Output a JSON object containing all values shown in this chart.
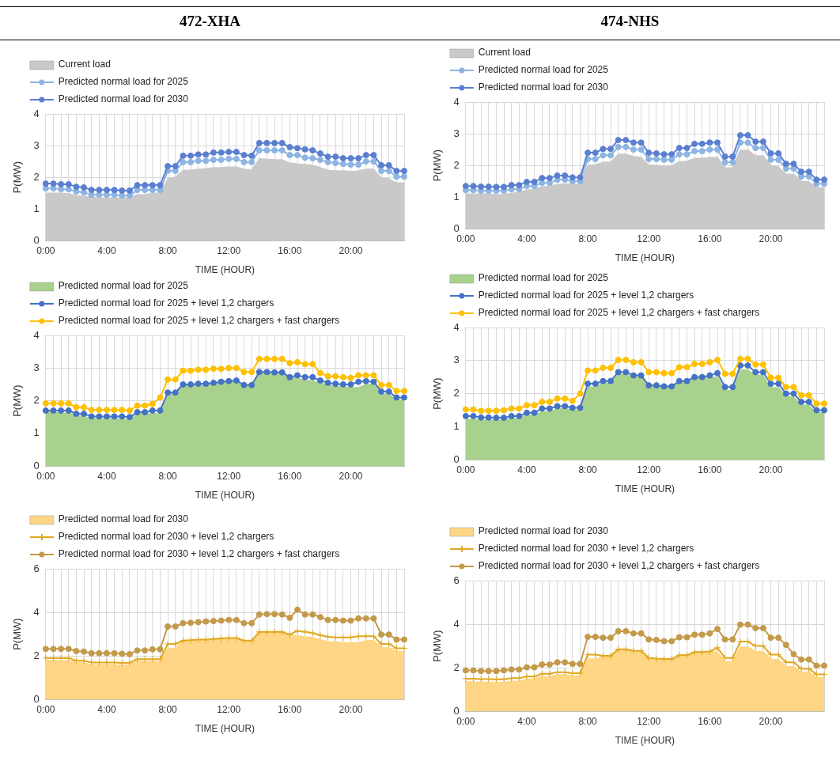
{
  "chart_data": [
    {
      "type": "line",
      "title": "472-XHA",
      "xlabel": "TIME (HOUR)",
      "ylabel": "P(MW)",
      "categories": [
        "0:00",
        null,
        null,
        null,
        null,
        null,
        null,
        null,
        "4:00",
        null,
        null,
        null,
        null,
        null,
        null,
        null,
        "8:00",
        null,
        null,
        null,
        null,
        null,
        null,
        null,
        "12:00",
        null,
        null,
        null,
        null,
        null,
        null,
        null,
        "16:00",
        null,
        null,
        null,
        null,
        null,
        null,
        null,
        "20:00",
        null,
        null,
        null,
        null,
        null,
        null,
        null
      ],
      "ylim": [
        0,
        4
      ],
      "yticks": [
        0,
        1,
        2,
        3,
        4
      ],
      "grid": true,
      "legend": "top left",
      "series": [
        {
          "name": "Current load",
          "type": "area",
          "marker": "none",
          "color": "#c9c9c9",
          "values": [
            1.5,
            1.5,
            1.5,
            1.48,
            1.42,
            1.4,
            1.38,
            1.35,
            1.35,
            1.35,
            1.35,
            1.35,
            1.45,
            1.45,
            1.5,
            1.5,
            1.95,
            2.0,
            2.22,
            2.22,
            2.25,
            2.27,
            2.3,
            2.3,
            2.32,
            2.33,
            2.25,
            2.23,
            2.58,
            2.57,
            2.55,
            2.55,
            2.45,
            2.42,
            2.4,
            2.38,
            2.3,
            2.22,
            2.2,
            2.2,
            2.18,
            2.2,
            2.25,
            2.25,
            1.98,
            1.95,
            1.82,
            1.82
          ]
        },
        {
          "name": "Predicted normal load for 2025",
          "type": "line",
          "marker": "circle",
          "color": "#8db4e2",
          "values": [
            1.65,
            1.65,
            1.62,
            1.62,
            1.55,
            1.52,
            1.45,
            1.45,
            1.45,
            1.45,
            1.42,
            1.42,
            1.6,
            1.6,
            1.6,
            1.6,
            2.2,
            2.2,
            2.48,
            2.48,
            2.52,
            2.52,
            2.55,
            2.55,
            2.58,
            2.58,
            2.48,
            2.48,
            2.85,
            2.85,
            2.85,
            2.85,
            2.7,
            2.7,
            2.62,
            2.6,
            2.55,
            2.48,
            2.45,
            2.42,
            2.4,
            2.4,
            2.5,
            2.5,
            2.2,
            2.2,
            2.02,
            2.02
          ]
        },
        {
          "name": "Predicted normal load for 2030",
          "type": "line",
          "marker": "circle",
          "color": "#5b7fd0",
          "values": [
            1.8,
            1.8,
            1.78,
            1.78,
            1.7,
            1.68,
            1.6,
            1.6,
            1.6,
            1.6,
            1.58,
            1.58,
            1.75,
            1.75,
            1.75,
            1.75,
            2.35,
            2.35,
            2.68,
            2.68,
            2.72,
            2.72,
            2.78,
            2.78,
            2.8,
            2.8,
            2.7,
            2.68,
            3.08,
            3.08,
            3.08,
            3.08,
            2.95,
            2.92,
            2.88,
            2.85,
            2.75,
            2.65,
            2.65,
            2.6,
            2.6,
            2.6,
            2.7,
            2.7,
            2.38,
            2.38,
            2.2,
            2.2
          ]
        }
      ]
    },
    {
      "type": "line",
      "title": "474-NHS",
      "xlabel": "TIME (HOUR)",
      "ylabel": "P(MW)",
      "categories": [
        "0:00",
        null,
        null,
        null,
        null,
        null,
        null,
        null,
        "4:00",
        null,
        null,
        null,
        null,
        null,
        null,
        null,
        "8:00",
        null,
        null,
        null,
        null,
        null,
        null,
        null,
        "12:00",
        null,
        null,
        null,
        null,
        null,
        null,
        null,
        "16:00",
        null,
        null,
        null,
        null,
        null,
        null,
        null,
        "20:00",
        null,
        null,
        null,
        null,
        null,
        null,
        null
      ],
      "ylim": [
        0,
        4
      ],
      "yticks": [
        0,
        1,
        2,
        3,
        4
      ],
      "grid": true,
      "legend": "top left",
      "series": [
        {
          "name": "Current load",
          "type": "area",
          "marker": "none",
          "color": "#c9c9c9",
          "values": [
            1.1,
            1.1,
            1.1,
            1.1,
            1.08,
            1.08,
            1.12,
            1.15,
            1.22,
            1.25,
            1.32,
            1.35,
            1.4,
            1.42,
            1.4,
            1.4,
            2.0,
            2.02,
            2.1,
            2.1,
            2.35,
            2.35,
            2.28,
            2.25,
            2.0,
            2.0,
            1.98,
            1.98,
            2.12,
            2.12,
            2.22,
            2.22,
            2.25,
            2.25,
            1.92,
            1.92,
            2.48,
            2.48,
            2.3,
            2.3,
            2.0,
            1.95,
            1.72,
            1.72,
            1.5,
            1.48,
            1.3,
            1.3
          ]
        },
        {
          "name": "Predicted normal load for 2025",
          "type": "line",
          "marker": "circle",
          "color": "#8db4e2",
          "values": [
            1.22,
            1.22,
            1.2,
            1.2,
            1.2,
            1.2,
            1.25,
            1.25,
            1.35,
            1.35,
            1.45,
            1.45,
            1.55,
            1.55,
            1.5,
            1.5,
            2.2,
            2.2,
            2.32,
            2.32,
            2.58,
            2.58,
            2.5,
            2.5,
            2.2,
            2.2,
            2.18,
            2.18,
            2.35,
            2.35,
            2.45,
            2.45,
            2.5,
            2.5,
            2.1,
            2.1,
            2.72,
            2.72,
            2.55,
            2.55,
            2.18,
            2.18,
            1.9,
            1.9,
            1.65,
            1.65,
            1.42,
            1.42
          ]
        },
        {
          "name": "Predicted normal load for 2030",
          "type": "line",
          "marker": "circle",
          "color": "#5b7fd0",
          "values": [
            1.35,
            1.35,
            1.33,
            1.33,
            1.32,
            1.32,
            1.38,
            1.38,
            1.48,
            1.48,
            1.6,
            1.6,
            1.68,
            1.68,
            1.62,
            1.62,
            2.4,
            2.4,
            2.52,
            2.52,
            2.8,
            2.8,
            2.72,
            2.72,
            2.4,
            2.38,
            2.35,
            2.35,
            2.55,
            2.55,
            2.68,
            2.68,
            2.72,
            2.72,
            2.28,
            2.28,
            2.95,
            2.95,
            2.75,
            2.75,
            2.38,
            2.38,
            2.05,
            2.05,
            1.8,
            1.8,
            1.55,
            1.55
          ]
        }
      ]
    },
    {
      "type": "line",
      "xlabel": "TIME (HOUR)",
      "ylabel": "P(MW)",
      "categories": [
        "0:00",
        null,
        null,
        null,
        null,
        null,
        null,
        null,
        "4:00",
        null,
        null,
        null,
        null,
        null,
        null,
        null,
        "8:00",
        null,
        null,
        null,
        null,
        null,
        null,
        null,
        "12:00",
        null,
        null,
        null,
        null,
        null,
        null,
        null,
        "16:00",
        null,
        null,
        null,
        null,
        null,
        null,
        null,
        "20:00",
        null,
        null,
        null,
        null,
        null,
        null,
        null
      ],
      "ylim": [
        0,
        4
      ],
      "yticks": [
        0,
        1,
        2,
        3,
        4
      ],
      "grid": true,
      "legend": "top left",
      "series": [
        {
          "name": "Predicted normal load for 2025",
          "type": "area",
          "marker": "none",
          "color": "#a9d18e",
          "values": [
            1.65,
            1.65,
            1.62,
            1.62,
            1.55,
            1.52,
            1.45,
            1.45,
            1.45,
            1.45,
            1.42,
            1.42,
            1.6,
            1.6,
            1.6,
            1.6,
            2.2,
            2.2,
            2.48,
            2.48,
            2.52,
            2.52,
            2.55,
            2.55,
            2.58,
            2.58,
            2.48,
            2.48,
            2.85,
            2.85,
            2.85,
            2.85,
            2.7,
            2.7,
            2.62,
            2.6,
            2.55,
            2.48,
            2.45,
            2.42,
            2.4,
            2.4,
            2.5,
            2.5,
            2.2,
            2.2,
            2.02,
            2.02
          ]
        },
        {
          "name": "Predicted normal load for 2025 + level 1,2 chargers",
          "type": "line",
          "marker": "circle",
          "color": "#4472c4",
          "values": [
            1.7,
            1.7,
            1.7,
            1.7,
            1.6,
            1.6,
            1.52,
            1.52,
            1.52,
            1.52,
            1.52,
            1.5,
            1.65,
            1.65,
            1.7,
            1.7,
            2.25,
            2.25,
            2.5,
            2.5,
            2.52,
            2.52,
            2.55,
            2.58,
            2.6,
            2.62,
            2.48,
            2.48,
            2.88,
            2.88,
            2.87,
            2.87,
            2.72,
            2.78,
            2.72,
            2.72,
            2.62,
            2.55,
            2.52,
            2.5,
            2.5,
            2.58,
            2.6,
            2.58,
            2.28,
            2.28,
            2.1,
            2.1
          ]
        },
        {
          "name": "Predicted normal load for 2025 + level 1,2 chargers + fast chargers",
          "type": "line",
          "marker": "circle",
          "color": "#ffc000",
          "values": [
            1.92,
            1.92,
            1.92,
            1.92,
            1.8,
            1.8,
            1.72,
            1.72,
            1.72,
            1.72,
            1.72,
            1.7,
            1.85,
            1.85,
            1.9,
            2.1,
            2.65,
            2.65,
            2.92,
            2.92,
            2.95,
            2.95,
            2.98,
            2.98,
            3.0,
            3.0,
            2.88,
            2.88,
            3.28,
            3.28,
            3.28,
            3.28,
            3.15,
            3.18,
            3.12,
            3.12,
            2.85,
            2.75,
            2.75,
            2.72,
            2.7,
            2.78,
            2.78,
            2.78,
            2.48,
            2.48,
            2.3,
            2.3
          ]
        }
      ]
    },
    {
      "type": "line",
      "xlabel": "TIME (HOUR)",
      "ylabel": "P(MW)",
      "categories": [
        "0:00",
        null,
        null,
        null,
        null,
        null,
        null,
        null,
        "4:00",
        null,
        null,
        null,
        null,
        null,
        null,
        null,
        "8:00",
        null,
        null,
        null,
        null,
        null,
        null,
        null,
        "12:00",
        null,
        null,
        null,
        null,
        null,
        null,
        null,
        "16:00",
        null,
        null,
        null,
        null,
        null,
        null,
        null,
        "20:00",
        null,
        null,
        null,
        null,
        null,
        null,
        null
      ],
      "ylim": [
        0,
        4
      ],
      "yticks": [
        0,
        1,
        2,
        3,
        4
      ],
      "grid": true,
      "legend": "top left",
      "series": [
        {
          "name": "Predicted normal load for 2025",
          "type": "area",
          "marker": "none",
          "color": "#a9d18e",
          "values": [
            1.22,
            1.22,
            1.2,
            1.2,
            1.2,
            1.2,
            1.25,
            1.25,
            1.35,
            1.35,
            1.45,
            1.45,
            1.55,
            1.55,
            1.5,
            1.5,
            2.2,
            2.2,
            2.32,
            2.32,
            2.58,
            2.58,
            2.5,
            2.5,
            2.2,
            2.2,
            2.18,
            2.18,
            2.35,
            2.35,
            2.45,
            2.45,
            2.5,
            2.5,
            2.1,
            2.1,
            2.72,
            2.72,
            2.55,
            2.55,
            2.18,
            2.18,
            1.9,
            1.9,
            1.65,
            1.65,
            1.42,
            1.42
          ]
        },
        {
          "name": "Predicted normal load for 2025 + level 1,2 chargers",
          "type": "line",
          "marker": "circle",
          "color": "#4472c4",
          "values": [
            1.32,
            1.32,
            1.28,
            1.28,
            1.27,
            1.27,
            1.32,
            1.32,
            1.42,
            1.42,
            1.55,
            1.55,
            1.62,
            1.62,
            1.57,
            1.57,
            2.3,
            2.3,
            2.38,
            2.38,
            2.65,
            2.65,
            2.55,
            2.55,
            2.25,
            2.25,
            2.22,
            2.22,
            2.38,
            2.38,
            2.5,
            2.5,
            2.55,
            2.62,
            2.2,
            2.2,
            2.85,
            2.85,
            2.65,
            2.65,
            2.3,
            2.3,
            2.0,
            2.0,
            1.75,
            1.75,
            1.5,
            1.5
          ]
        },
        {
          "name": "Predicted normal load for 2025 + level 1,2 chargers + fast chargers",
          "type": "line",
          "marker": "circle",
          "color": "#ffc000",
          "values": [
            1.52,
            1.52,
            1.48,
            1.48,
            1.48,
            1.5,
            1.55,
            1.55,
            1.65,
            1.65,
            1.75,
            1.75,
            1.85,
            1.85,
            1.78,
            2.0,
            2.7,
            2.7,
            2.78,
            2.78,
            3.02,
            3.02,
            2.95,
            2.95,
            2.65,
            2.65,
            2.62,
            2.62,
            2.8,
            2.8,
            2.9,
            2.9,
            2.95,
            3.02,
            2.6,
            2.6,
            3.05,
            3.05,
            2.88,
            2.88,
            2.48,
            2.48,
            2.2,
            2.2,
            1.95,
            1.95,
            1.7,
            1.7
          ]
        }
      ]
    },
    {
      "type": "line",
      "xlabel": "TIME (HOUR)",
      "ylabel": "P(MW)",
      "categories": [
        "0:00",
        null,
        null,
        null,
        null,
        null,
        null,
        null,
        "4:00",
        null,
        null,
        null,
        null,
        null,
        null,
        null,
        "8:00",
        null,
        null,
        null,
        null,
        null,
        null,
        null,
        "12:00",
        null,
        null,
        null,
        null,
        null,
        null,
        null,
        "16:00",
        null,
        null,
        null,
        null,
        null,
        null,
        null,
        "20:00",
        null,
        null,
        null,
        null,
        null,
        null,
        null
      ],
      "ylim": [
        0,
        6
      ],
      "yticks": [
        0,
        2,
        4,
        6
      ],
      "grid": true,
      "legend": "top left",
      "series": [
        {
          "name": "Predicted normal load for 2030",
          "type": "area",
          "marker": "none",
          "color": "#ffd685",
          "values": [
            1.8,
            1.8,
            1.78,
            1.78,
            1.7,
            1.68,
            1.6,
            1.6,
            1.6,
            1.6,
            1.58,
            1.58,
            1.75,
            1.75,
            1.75,
            1.75,
            2.35,
            2.35,
            2.68,
            2.68,
            2.72,
            2.72,
            2.78,
            2.78,
            2.8,
            2.8,
            2.7,
            2.68,
            3.08,
            3.08,
            3.08,
            3.08,
            2.95,
            2.92,
            2.88,
            2.85,
            2.75,
            2.65,
            2.65,
            2.6,
            2.6,
            2.6,
            2.7,
            2.7,
            2.38,
            2.38,
            2.2,
            2.2
          ]
        },
        {
          "name": "Predicted normal load for 2030 + level 1,2 chargers",
          "type": "line",
          "marker": "cross",
          "color": "#e0a820",
          "values": [
            1.9,
            1.9,
            1.9,
            1.9,
            1.78,
            1.78,
            1.7,
            1.7,
            1.7,
            1.7,
            1.68,
            1.68,
            1.85,
            1.85,
            1.85,
            1.85,
            2.55,
            2.55,
            2.7,
            2.72,
            2.75,
            2.75,
            2.78,
            2.8,
            2.82,
            2.82,
            2.7,
            2.7,
            3.1,
            3.1,
            3.1,
            3.1,
            2.98,
            3.15,
            3.1,
            3.05,
            2.95,
            2.88,
            2.85,
            2.85,
            2.85,
            2.9,
            2.9,
            2.9,
            2.55,
            2.55,
            2.35,
            2.35
          ]
        },
        {
          "name": "Predicted normal load for 2030 + level 1,2 chargers + fast chargers",
          "type": "line",
          "marker": "circle",
          "color": "#c49a4a",
          "values": [
            2.32,
            2.32,
            2.32,
            2.32,
            2.22,
            2.2,
            2.12,
            2.12,
            2.12,
            2.12,
            2.1,
            2.08,
            2.25,
            2.25,
            2.3,
            2.3,
            3.35,
            3.35,
            3.5,
            3.52,
            3.55,
            3.58,
            3.6,
            3.62,
            3.65,
            3.65,
            3.5,
            3.5,
            3.9,
            3.92,
            3.92,
            3.9,
            3.75,
            4.12,
            3.9,
            3.9,
            3.78,
            3.65,
            3.65,
            3.62,
            3.62,
            3.72,
            3.72,
            3.72,
            2.98,
            2.98,
            2.75,
            2.75
          ]
        }
      ]
    },
    {
      "type": "line",
      "xlabel": "TIME (HOUR)",
      "ylabel": "P(MW)",
      "categories": [
        "0:00",
        null,
        null,
        null,
        null,
        null,
        null,
        null,
        "4:00",
        null,
        null,
        null,
        null,
        null,
        null,
        null,
        "8:00",
        null,
        null,
        null,
        null,
        null,
        null,
        null,
        "12:00",
        null,
        null,
        null,
        null,
        null,
        null,
        null,
        "16:00",
        null,
        null,
        null,
        null,
        null,
        null,
        null,
        "20:00",
        null,
        null,
        null,
        null,
        null,
        null,
        null
      ],
      "ylim": [
        0,
        6
      ],
      "yticks": [
        0,
        2,
        4,
        6
      ],
      "grid": true,
      "legend": "top left",
      "series": [
        {
          "name": "Predicted normal load for 2030",
          "type": "area",
          "marker": "none",
          "color": "#ffd685",
          "values": [
            1.35,
            1.35,
            1.33,
            1.33,
            1.32,
            1.32,
            1.38,
            1.38,
            1.48,
            1.48,
            1.6,
            1.6,
            1.68,
            1.68,
            1.62,
            1.62,
            2.4,
            2.4,
            2.52,
            2.52,
            2.8,
            2.8,
            2.72,
            2.72,
            2.4,
            2.38,
            2.35,
            2.35,
            2.55,
            2.55,
            2.68,
            2.68,
            2.72,
            2.72,
            2.28,
            2.28,
            2.95,
            2.95,
            2.75,
            2.75,
            2.38,
            2.38,
            2.05,
            2.05,
            1.8,
            1.8,
            1.55,
            1.55
          ]
        },
        {
          "name": "Predicted normal load for 2030 + level 1,2 chargers",
          "type": "line",
          "marker": "cross",
          "color": "#e0a820",
          "values": [
            1.5,
            1.5,
            1.48,
            1.48,
            1.47,
            1.47,
            1.52,
            1.52,
            1.6,
            1.6,
            1.72,
            1.72,
            1.8,
            1.8,
            1.75,
            1.75,
            2.6,
            2.6,
            2.55,
            2.55,
            2.85,
            2.85,
            2.78,
            2.78,
            2.45,
            2.42,
            2.4,
            2.4,
            2.58,
            2.58,
            2.72,
            2.72,
            2.75,
            2.92,
            2.45,
            2.45,
            3.2,
            3.2,
            3.0,
            3.0,
            2.6,
            2.6,
            2.25,
            2.25,
            1.95,
            1.95,
            1.7,
            1.7
          ]
        },
        {
          "name": "Predicted normal load for 2030 + level 1,2 chargers + fast chargers",
          "type": "line",
          "marker": "circle",
          "color": "#c49a4a",
          "values": [
            1.88,
            1.88,
            1.85,
            1.85,
            1.85,
            1.88,
            1.92,
            1.92,
            2.02,
            2.02,
            2.15,
            2.15,
            2.25,
            2.25,
            2.18,
            2.18,
            3.42,
            3.42,
            3.38,
            3.38,
            3.68,
            3.68,
            3.58,
            3.58,
            3.3,
            3.28,
            3.22,
            3.22,
            3.4,
            3.4,
            3.52,
            3.52,
            3.58,
            3.78,
            3.3,
            3.3,
            3.98,
            3.98,
            3.82,
            3.82,
            3.38,
            3.38,
            3.05,
            2.62,
            2.38,
            2.38,
            2.1,
            2.1
          ]
        }
      ]
    }
  ]
}
